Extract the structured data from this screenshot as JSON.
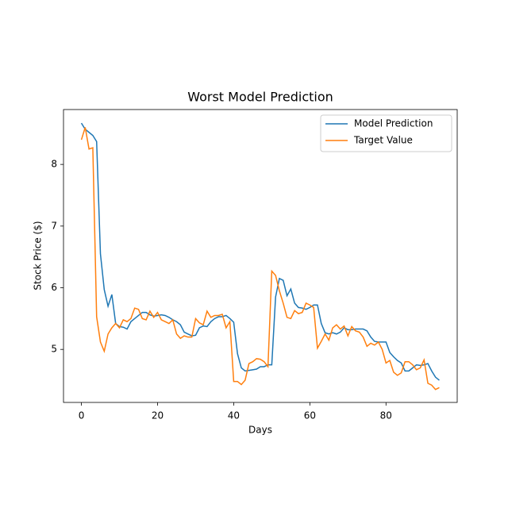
{
  "chart_data": {
    "type": "line",
    "title": "Worst Model Prediction",
    "x_label": "Days",
    "y_label": "Stock Price ($)",
    "x": [
      0,
      1,
      2,
      3,
      4,
      5,
      6,
      7,
      8,
      9,
      10,
      11,
      12,
      13,
      14,
      15,
      16,
      17,
      18,
      19,
      20,
      21,
      22,
      23,
      24,
      25,
      26,
      27,
      28,
      29,
      30,
      31,
      32,
      33,
      34,
      35,
      36,
      37,
      38,
      39,
      40,
      41,
      42,
      43,
      44,
      45,
      46,
      47,
      48,
      49,
      50,
      51,
      52,
      53,
      54,
      55,
      56,
      57,
      58,
      59,
      60,
      61,
      62,
      63,
      64,
      65,
      66,
      67,
      68,
      69,
      70,
      71,
      72,
      73,
      74,
      75,
      76,
      77,
      78,
      79,
      80,
      81,
      82,
      83,
      84,
      85,
      86,
      87,
      88,
      89,
      90,
      91,
      92,
      93,
      94
    ],
    "series": [
      {
        "name": "Model Prediction",
        "color": "#1f77b4",
        "values": [
          8.67,
          8.57,
          8.52,
          8.47,
          8.37,
          6.55,
          5.97,
          5.7,
          5.89,
          5.42,
          5.37,
          5.36,
          5.33,
          5.45,
          5.5,
          5.55,
          5.6,
          5.6,
          5.56,
          5.54,
          5.55,
          5.56,
          5.55,
          5.52,
          5.48,
          5.45,
          5.4,
          5.28,
          5.25,
          5.22,
          5.23,
          5.35,
          5.38,
          5.37,
          5.45,
          5.5,
          5.53,
          5.53,
          5.55,
          5.5,
          5.44,
          4.93,
          4.7,
          4.65,
          4.66,
          4.67,
          4.68,
          4.72,
          4.72,
          4.75,
          4.75,
          5.85,
          6.15,
          6.12,
          5.87,
          5.98,
          5.75,
          5.68,
          5.67,
          5.65,
          5.68,
          5.72,
          5.72,
          5.42,
          5.27,
          5.25,
          5.27,
          5.25,
          5.28,
          5.35,
          5.32,
          5.32,
          5.33,
          5.33,
          5.33,
          5.3,
          5.2,
          5.13,
          5.12,
          5.12,
          5.12,
          4.95,
          4.88,
          4.82,
          4.78,
          4.65,
          4.65,
          4.7,
          4.75,
          4.74,
          4.75,
          4.77,
          4.65,
          4.55,
          4.5
        ]
      },
      {
        "name": "Target Value",
        "color": "#ff7f0e",
        "values": [
          8.4,
          8.6,
          8.25,
          8.27,
          5.53,
          5.12,
          4.97,
          5.25,
          5.35,
          5.42,
          5.35,
          5.48,
          5.45,
          5.5,
          5.67,
          5.65,
          5.5,
          5.48,
          5.62,
          5.52,
          5.6,
          5.48,
          5.45,
          5.42,
          5.48,
          5.25,
          5.18,
          5.22,
          5.2,
          5.2,
          5.5,
          5.43,
          5.4,
          5.62,
          5.52,
          5.55,
          5.55,
          5.57,
          5.35,
          5.45,
          4.48,
          4.48,
          4.43,
          4.5,
          4.77,
          4.8,
          4.85,
          4.84,
          4.8,
          4.72,
          6.27,
          6.2,
          5.95,
          5.75,
          5.52,
          5.5,
          5.63,
          5.58,
          5.6,
          5.75,
          5.72,
          5.68,
          5.02,
          5.13,
          5.25,
          5.15,
          5.35,
          5.4,
          5.33,
          5.38,
          5.22,
          5.37,
          5.3,
          5.28,
          5.2,
          5.05,
          5.1,
          5.07,
          5.12,
          5.0,
          4.78,
          4.82,
          4.63,
          4.58,
          4.62,
          4.8,
          4.8,
          4.75,
          4.67,
          4.7,
          4.83,
          4.45,
          4.42,
          4.35,
          4.38
        ]
      }
    ],
    "xlim": [
      -4.7,
      98.7
    ],
    "ylim": [
      4.14,
      8.89
    ],
    "xticks": [
      0,
      20,
      40,
      60,
      80
    ],
    "yticks": [
      5,
      6,
      7,
      8
    ],
    "legend": "upper right"
  }
}
